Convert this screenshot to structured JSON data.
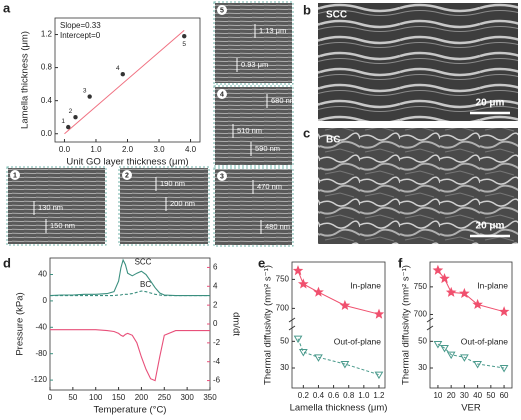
{
  "panel_letters": [
    "a",
    "b",
    "c",
    "d",
    "e",
    "f"
  ],
  "images": [
    {
      "number": "5",
      "labels": [
        "1.13 μm",
        "0.93 μm"
      ]
    },
    {
      "number": "4",
      "labels": [
        "680 nm",
        "510 nm",
        "590 nm"
      ]
    },
    {
      "number": "3",
      "labels": [
        "470 nm",
        "480 nm"
      ]
    },
    {
      "number": "1",
      "labels": [
        "130 nm",
        "150 nm"
      ]
    },
    {
      "number": "2",
      "labels": [
        "190 nm",
        "200 nm"
      ]
    },
    {
      "title": "SCC",
      "scale_bar": "20 μm"
    },
    {
      "title": "BC",
      "scale_bar": "20 μm"
    }
  ],
  "chart_data": [
    {
      "type": "scatter",
      "xlabel": "Unit GO layer thickness (μm)",
      "ylabel": "Lamella thickness (μm)",
      "annotations": [
        "Slope=0.33",
        "Intercept=0"
      ],
      "x": [
        0.12,
        0.35,
        0.8,
        1.85,
        3.8
      ],
      "values": [
        0.08,
        0.2,
        0.45,
        0.72,
        1.18
      ],
      "color": "#333333",
      "point_labels": [
        "1",
        "2",
        "3",
        "4",
        "5"
      ],
      "fit": {
        "color": "#f07080",
        "x": [
          0,
          3.8
        ],
        "values": [
          0,
          1.25
        ]
      },
      "xlim": [
        -0.3,
        4.3
      ],
      "ylim": [
        -0.1,
        1.4
      ],
      "xticks": [
        {
          "value": 0,
          "label": "0.0"
        },
        {
          "value": 1,
          "label": "1.0"
        },
        {
          "value": 2,
          "label": "2.0"
        },
        {
          "value": 3,
          "label": "3.0"
        },
        {
          "value": 4,
          "label": "4.0"
        }
      ],
      "yticks": [
        {
          "value": 0,
          "label": "0.0"
        },
        0.4,
        0.8,
        1.2
      ]
    },
    {
      "type": "line",
      "xlabel": "Temperature (°C)",
      "ylabel": "Pressure (kPa)",
      "y2label": "dm/dt",
      "annotations": [
        "SCC",
        "BC"
      ],
      "x": [
        0,
        25,
        50,
        75,
        100,
        125,
        140,
        150,
        155,
        160,
        165,
        170,
        180,
        190,
        200,
        210,
        220,
        230,
        240,
        250,
        275,
        300,
        325,
        350
      ],
      "series": [
        {
          "name": "SCC",
          "color": "#3b8f7f",
          "values": [
            8,
            9,
            9,
            10,
            10,
            11,
            14,
            30,
            50,
            62,
            55,
            42,
            38,
            42,
            45,
            40,
            30,
            20,
            12,
            9,
            8,
            8,
            8,
            8
          ]
        },
        {
          "name": "BC",
          "color": "#3b8f7f",
          "style": "dashed",
          "values": [
            8,
            8,
            8,
            8,
            8,
            8,
            8,
            9,
            9,
            10,
            10,
            10,
            11,
            13,
            15,
            14,
            12,
            10,
            9,
            8,
            8,
            8,
            8,
            8
          ]
        },
        {
          "name": "dm/dt",
          "color": "#e8507a",
          "axis": "y2",
          "values": [
            -0.6,
            -0.6,
            -0.6,
            -0.6,
            -0.6,
            -0.7,
            -0.8,
            -1.0,
            -1.2,
            -1.3,
            -1.1,
            -1.0,
            -1.2,
            -2.0,
            -3.5,
            -4.8,
            -5.8,
            -6.0,
            -3.5,
            -1.2,
            -0.7,
            -0.7,
            -0.7,
            -0.7
          ]
        }
      ],
      "xlim": [
        0,
        350
      ],
      "xticks": [
        0,
        50,
        100,
        150,
        200,
        250,
        300,
        350
      ],
      "ylim": [
        -135,
        65
      ],
      "yticks": [
        40,
        0,
        -40,
        -80,
        -120
      ],
      "y2lim": [
        -7,
        7
      ],
      "y2ticks": [
        6,
        4,
        2,
        0,
        -2,
        -4,
        -6
      ]
    },
    {
      "type": "broken-line",
      "xlabel": "Lamella thickness (μm)",
      "ylabel": "Thermal diffusivity (mm² s⁻¹)",
      "x": [
        0.13,
        0.2,
        0.4,
        0.75,
        1.2
      ],
      "series": [
        {
          "name": "In-plane",
          "color": "#f0506e",
          "marker": "star",
          "axis": "upper",
          "values": [
            765,
            742,
            728,
            705,
            690
          ]
        },
        {
          "name": "Out-of-plane",
          "color": "#4a9a8c",
          "marker": "triangle",
          "style": "dashed",
          "axis": "lower",
          "values": [
            52,
            42,
            38,
            33,
            25
          ]
        }
      ],
      "xlim": [
        0.05,
        1.28
      ],
      "xticks": [
        0.2,
        0.4,
        0.6,
        0.8,
        {
          "value": 1,
          "label": "1.0"
        },
        1.2
      ],
      "upper_ylim": [
        680,
        780
      ],
      "upper_yticks": [
        700,
        750
      ],
      "lower_ylim": [
        15,
        60
      ],
      "lower_yticks": [
        30,
        50
      ]
    },
    {
      "type": "broken-line",
      "xlabel": "VER",
      "ylabel": "Thermal diffusivity (mm² s⁻¹)",
      "x": [
        10,
        15,
        20,
        30,
        40,
        60
      ],
      "series": [
        {
          "name": "In-plane",
          "color": "#f0506e",
          "marker": "star",
          "axis": "upper",
          "values": [
            780,
            765,
            740,
            738,
            718,
            705
          ]
        },
        {
          "name": "Out-of-plane",
          "color": "#4a9a8c",
          "marker": "triangle",
          "style": "dashed",
          "axis": "lower",
          "values": [
            48,
            45,
            40,
            38,
            33,
            30
          ]
        }
      ],
      "xlim": [
        4,
        66
      ],
      "xticks": [
        10,
        20,
        30,
        40,
        50,
        60
      ],
      "upper_ylim": [
        690,
        795
      ],
      "upper_yticks": [
        700,
        750
      ],
      "lower_ylim": [
        15,
        60
      ],
      "lower_yticks": [
        30,
        50
      ]
    }
  ]
}
